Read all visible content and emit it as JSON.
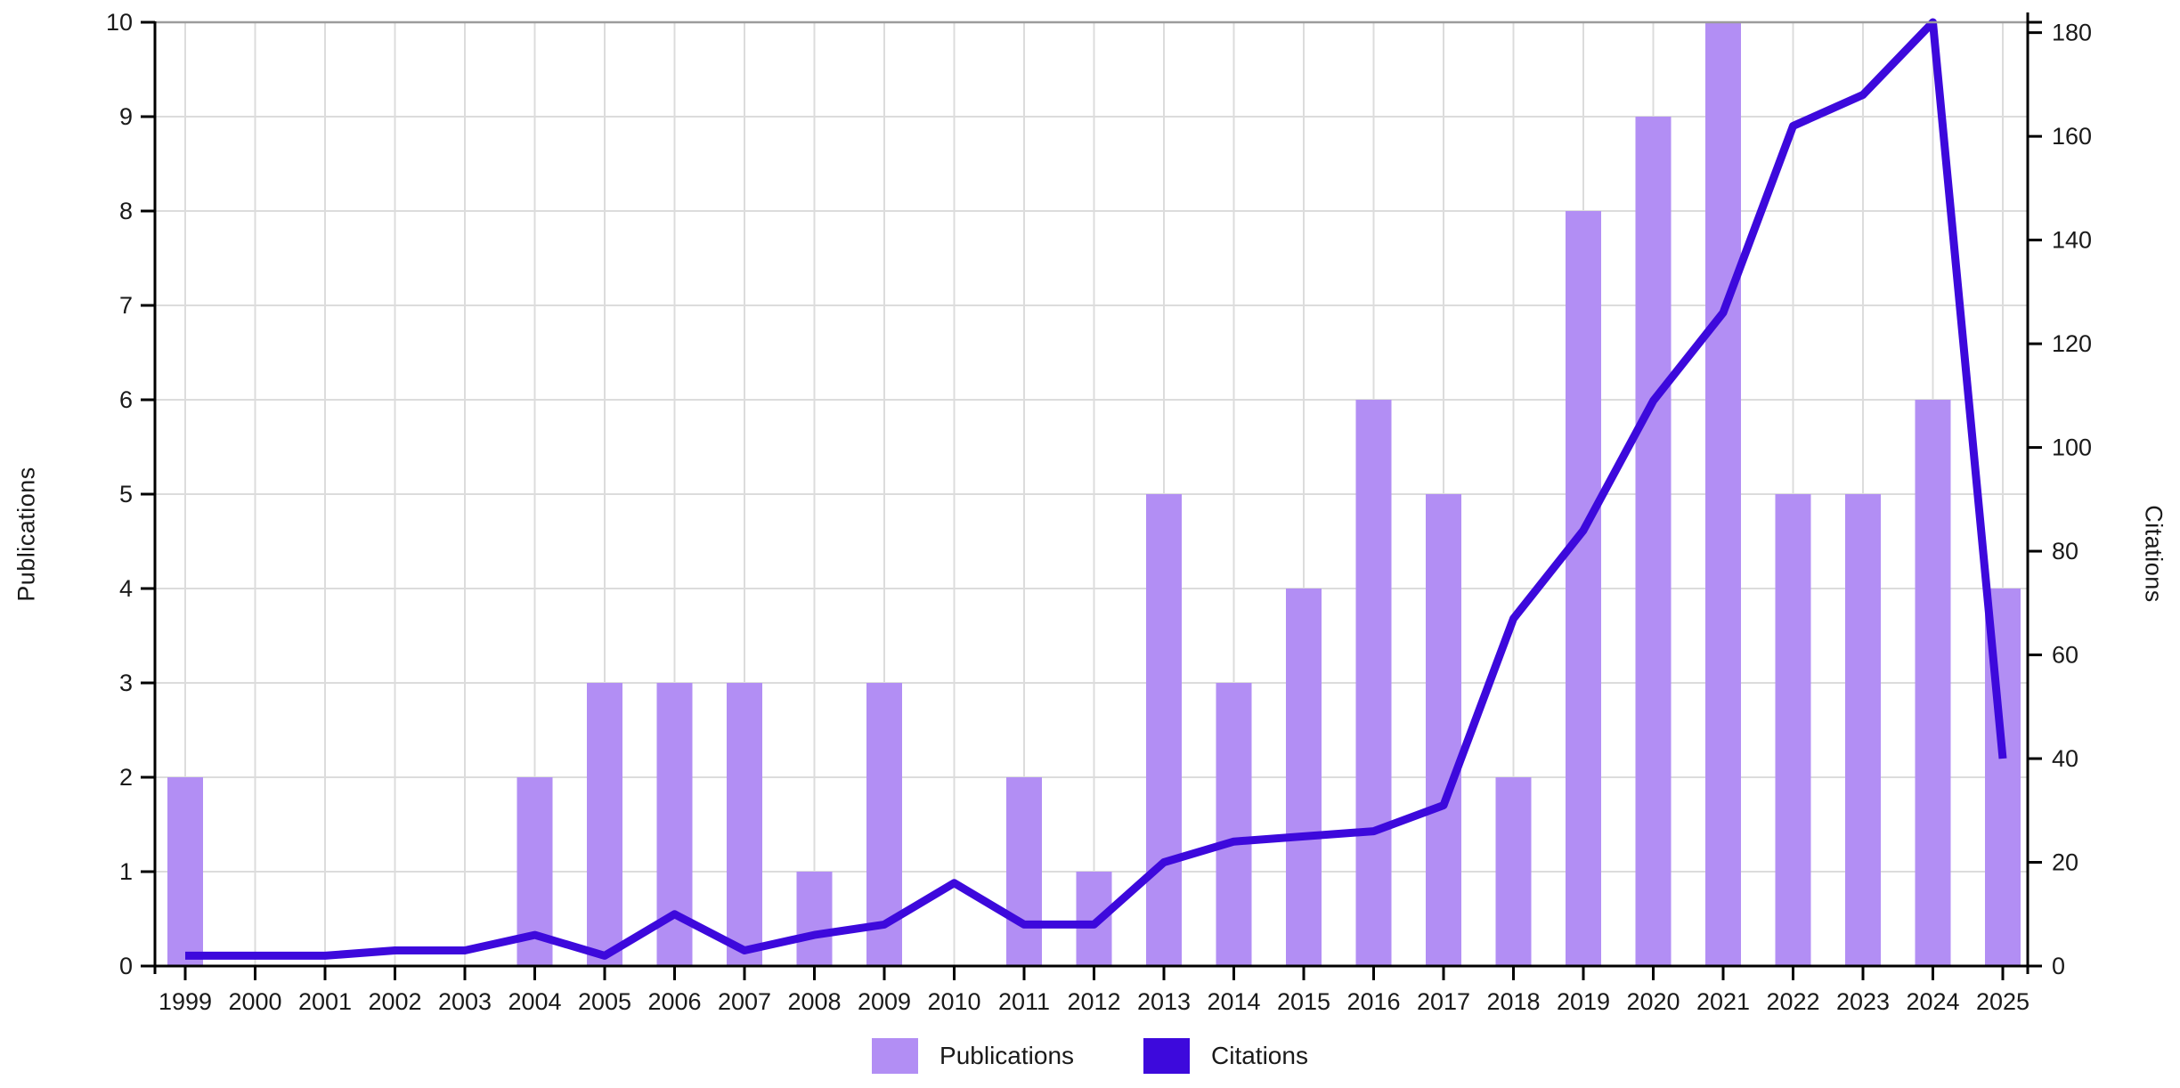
{
  "chart_data": {
    "type": "combo-bar-line",
    "title": "",
    "xlabel": "",
    "ylabel_left": "Publications",
    "ylabel_right": "Citations",
    "categories": [
      "1999",
      "2000",
      "2001",
      "2002",
      "2003",
      "2004",
      "2005",
      "2006",
      "2007",
      "2008",
      "2009",
      "2010",
      "2011",
      "2012",
      "2013",
      "2014",
      "2015",
      "2016",
      "2017",
      "2018",
      "2019",
      "2020",
      "2021",
      "2022",
      "2023",
      "2024",
      "2025"
    ],
    "series": [
      {
        "name": "Publications",
        "type": "bar",
        "axis": "left",
        "color": "#B28EF4",
        "values": [
          2,
          0,
          0,
          0,
          0,
          2,
          3,
          3,
          3,
          1,
          3,
          0,
          2,
          1,
          5,
          3,
          4,
          6,
          5,
          2,
          8,
          9,
          10,
          5,
          5,
          6,
          4
        ]
      },
      {
        "name": "Citations",
        "type": "line",
        "axis": "right",
        "color": "#3D09DC",
        "values": [
          2,
          2,
          2,
          3,
          3,
          6,
          2,
          10,
          3,
          6,
          8,
          16,
          8,
          8,
          20,
          24,
          25,
          26,
          31,
          67,
          84,
          109,
          126,
          162,
          168,
          182,
          40
        ]
      }
    ],
    "ylim_left": [
      0,
      10
    ],
    "ylim_right": [
      0,
      182
    ],
    "yticks_left": [
      0,
      1,
      2,
      3,
      4,
      5,
      6,
      7,
      8,
      9,
      10
    ],
    "yticks_right": [
      0,
      20,
      40,
      60,
      80,
      100,
      120,
      140,
      160,
      180
    ],
    "grid": true,
    "legend_position": "bottom"
  },
  "colors": {
    "bar": "#B28EF4",
    "line": "#3D09DC",
    "grid": "#DCDCDC",
    "spine": "#000000",
    "top_spine": "#9C9C9C",
    "tick_text": "#1a1a1a",
    "background": "#FFFFFF"
  }
}
